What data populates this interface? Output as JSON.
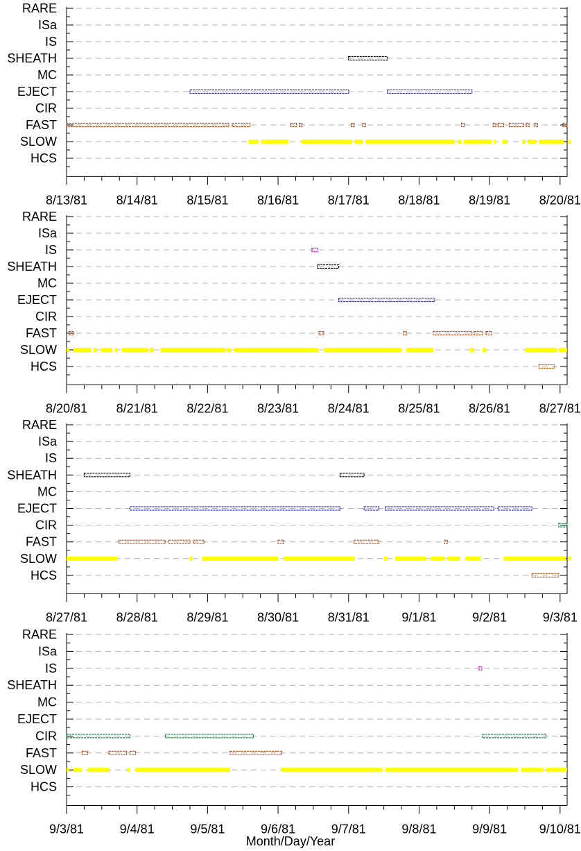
{
  "chart_data": {
    "type": "scatter",
    "xlabel": "Month/Day/Year",
    "categories": [
      "RARE",
      "ISa",
      "IS",
      "SHEATH",
      "MC",
      "EJECT",
      "CIR",
      "FAST",
      "SLOW",
      "HCS"
    ],
    "colors": {
      "SHEATH": "#000000",
      "EJECT": "#3333bb",
      "FAST": "#b05020",
      "SLOW": "#ffff00",
      "IS": "#cc22cc",
      "CIR": "#118844",
      "HCS": "#c06010"
    },
    "panels": [
      {
        "x_ticks": [
          "8/13/81",
          "8/14/81",
          "8/15/81",
          "8/16/81",
          "8/17/81",
          "8/18/81",
          "8/19/81",
          "8/20/81"
        ],
        "x_range_days": [
          0,
          7
        ],
        "intervals": [
          {
            "category": "SHEATH",
            "start": 4.0,
            "end": 4.55
          },
          {
            "category": "EJECT",
            "start": 1.75,
            "end": 4.0
          },
          {
            "category": "EJECT",
            "start": 4.55,
            "end": 5.75
          },
          {
            "category": "FAST",
            "start": 0.0,
            "end": 2.3
          },
          {
            "category": "FAST",
            "start": 2.35,
            "end": 2.6
          },
          {
            "category": "FAST",
            "start": 3.18,
            "end": 3.26
          },
          {
            "category": "FAST",
            "start": 3.3,
            "end": 3.34
          },
          {
            "category": "FAST",
            "start": 4.04,
            "end": 4.08
          },
          {
            "category": "FAST",
            "start": 4.2,
            "end": 4.24
          },
          {
            "category": "FAST",
            "start": 5.6,
            "end": 5.64
          },
          {
            "category": "FAST",
            "start": 6.05,
            "end": 6.09
          },
          {
            "category": "FAST",
            "start": 6.12,
            "end": 6.2
          },
          {
            "category": "FAST",
            "start": 6.28,
            "end": 6.48
          },
          {
            "category": "FAST",
            "start": 6.52,
            "end": 6.56
          },
          {
            "category": "FAST",
            "start": 6.64,
            "end": 6.68
          },
          {
            "category": "FAST",
            "start": 7.04,
            "end": 7.12
          },
          {
            "category": "SLOW",
            "start": 2.58,
            "end": 2.72
          },
          {
            "category": "SLOW",
            "start": 2.76,
            "end": 3.15
          },
          {
            "category": "SLOW",
            "start": 3.33,
            "end": 4.05
          },
          {
            "category": "SLOW",
            "start": 4.08,
            "end": 4.2
          },
          {
            "category": "SLOW",
            "start": 4.24,
            "end": 5.5
          },
          {
            "category": "SLOW",
            "start": 5.55,
            "end": 5.6
          },
          {
            "category": "SLOW",
            "start": 5.63,
            "end": 6.03
          },
          {
            "category": "SLOW",
            "start": 6.06,
            "end": 6.08
          },
          {
            "category": "SLOW",
            "start": 6.18,
            "end": 6.25
          },
          {
            "category": "SLOW",
            "start": 6.46,
            "end": 6.5
          },
          {
            "category": "SLOW",
            "start": 6.54,
            "end": 6.66
          },
          {
            "category": "SLOW",
            "start": 6.7,
            "end": 7.05
          },
          {
            "category": "SLOW",
            "start": 7.12,
            "end": 7.16
          }
        ]
      },
      {
        "x_ticks": [
          "8/20/81",
          "8/21/81",
          "8/22/81",
          "8/23/81",
          "8/24/81",
          "8/25/81",
          "8/26/81",
          "8/27/81"
        ],
        "x_range_days": [
          0,
          7
        ],
        "intervals": [
          {
            "category": "IS",
            "start": 3.48,
            "end": 3.56
          },
          {
            "category": "SHEATH",
            "start": 3.56,
            "end": 3.86
          },
          {
            "category": "EJECT",
            "start": 3.86,
            "end": 5.22
          },
          {
            "category": "FAST",
            "start": 0.03,
            "end": 0.1
          },
          {
            "category": "FAST",
            "start": 3.58,
            "end": 3.65
          },
          {
            "category": "FAST",
            "start": 4.78,
            "end": 4.82
          },
          {
            "category": "FAST",
            "start": 5.2,
            "end": 5.75
          },
          {
            "category": "FAST",
            "start": 5.78,
            "end": 5.9
          },
          {
            "category": "FAST",
            "start": 5.95,
            "end": 6.03
          },
          {
            "category": "HCS",
            "start": 6.7,
            "end": 6.92
          },
          {
            "category": "SLOW",
            "start": 0.0,
            "end": 0.04
          },
          {
            "category": "SLOW",
            "start": 0.1,
            "end": 0.35
          },
          {
            "category": "SLOW",
            "start": 0.38,
            "end": 0.43
          },
          {
            "category": "SLOW",
            "start": 0.48,
            "end": 0.65
          },
          {
            "category": "SLOW",
            "start": 0.68,
            "end": 0.72
          },
          {
            "category": "SLOW",
            "start": 0.78,
            "end": 1.15
          },
          {
            "category": "SLOW",
            "start": 1.18,
            "end": 1.23
          },
          {
            "category": "SLOW",
            "start": 1.33,
            "end": 2.25
          },
          {
            "category": "SLOW",
            "start": 2.28,
            "end": 2.33
          },
          {
            "category": "SLOW",
            "start": 2.38,
            "end": 3.57
          },
          {
            "category": "SLOW",
            "start": 3.65,
            "end": 4.75
          },
          {
            "category": "SLOW",
            "start": 4.82,
            "end": 5.2
          },
          {
            "category": "SLOW",
            "start": 5.72,
            "end": 5.78
          },
          {
            "category": "SLOW",
            "start": 5.9,
            "end": 5.95
          },
          {
            "category": "SLOW",
            "start": 6.5,
            "end": 6.95
          },
          {
            "category": "SLOW",
            "start": 6.98,
            "end": 7.16
          }
        ]
      },
      {
        "x_ticks": [
          "8/27/81",
          "8/28/81",
          "8/29/81",
          "8/30/81",
          "8/31/81",
          "9/1/81",
          "9/2/81",
          "9/3/81"
        ],
        "x_range_days": [
          0,
          7
        ],
        "intervals": [
          {
            "category": "SHEATH",
            "start": 0.25,
            "end": 0.9
          },
          {
            "category": "SHEATH",
            "start": 3.88,
            "end": 4.22
          },
          {
            "category": "EJECT",
            "start": 0.9,
            "end": 3.88
          },
          {
            "category": "EJECT",
            "start": 4.22,
            "end": 4.43
          },
          {
            "category": "EJECT",
            "start": 4.52,
            "end": 6.06
          },
          {
            "category": "EJECT",
            "start": 6.12,
            "end": 6.6
          },
          {
            "category": "CIR",
            "start": 6.98,
            "end": 7.16
          },
          {
            "category": "FAST",
            "start": 0.74,
            "end": 1.4
          },
          {
            "category": "FAST",
            "start": 1.45,
            "end": 1.75
          },
          {
            "category": "FAST",
            "start": 1.8,
            "end": 1.95
          },
          {
            "category": "FAST",
            "start": 3.0,
            "end": 3.08
          },
          {
            "category": "FAST",
            "start": 4.08,
            "end": 4.43
          },
          {
            "category": "FAST",
            "start": 5.36,
            "end": 5.4
          },
          {
            "category": "HCS",
            "start": 6.6,
            "end": 6.98
          },
          {
            "category": "SLOW",
            "start": 0.0,
            "end": 0.72
          },
          {
            "category": "SLOW",
            "start": 1.74,
            "end": 1.78
          },
          {
            "category": "SLOW",
            "start": 1.92,
            "end": 3.0
          },
          {
            "category": "SLOW",
            "start": 3.08,
            "end": 4.08
          },
          {
            "category": "SLOW",
            "start": 4.5,
            "end": 4.55
          },
          {
            "category": "SLOW",
            "start": 4.66,
            "end": 5.1
          },
          {
            "category": "SLOW",
            "start": 5.16,
            "end": 5.36
          },
          {
            "category": "SLOW",
            "start": 5.4,
            "end": 5.58
          },
          {
            "category": "SLOW",
            "start": 5.66,
            "end": 5.88
          },
          {
            "category": "SLOW",
            "start": 6.2,
            "end": 7.08
          },
          {
            "category": "SLOW",
            "start": 7.12,
            "end": 7.16
          }
        ]
      },
      {
        "x_ticks": [
          "9/3/81",
          "9/4/81",
          "9/5/81",
          "9/6/81",
          "9/7/81",
          "9/8/81",
          "9/9/81",
          "9/10/81"
        ],
        "x_range_days": [
          0,
          7
        ],
        "intervals": [
          {
            "category": "IS",
            "start": 5.85,
            "end": 5.89
          },
          {
            "category": "CIR",
            "start": 0.0,
            "end": 0.9
          },
          {
            "category": "CIR",
            "start": 1.4,
            "end": 2.65
          },
          {
            "category": "CIR",
            "start": 5.9,
            "end": 6.8
          },
          {
            "category": "FAST",
            "start": 0.22,
            "end": 0.3
          },
          {
            "category": "FAST",
            "start": 0.6,
            "end": 0.85
          },
          {
            "category": "FAST",
            "start": 0.9,
            "end": 0.98
          },
          {
            "category": "FAST",
            "start": 2.32,
            "end": 3.05
          },
          {
            "category": "SLOW",
            "start": 0.0,
            "end": 0.04
          },
          {
            "category": "SLOW",
            "start": 0.1,
            "end": 0.22
          },
          {
            "category": "SLOW",
            "start": 0.3,
            "end": 0.6
          },
          {
            "category": "SLOW",
            "start": 0.86,
            "end": 0.9
          },
          {
            "category": "SLOW",
            "start": 0.98,
            "end": 2.32
          },
          {
            "category": "SLOW",
            "start": 3.05,
            "end": 4.48
          },
          {
            "category": "SLOW",
            "start": 4.52,
            "end": 6.4
          },
          {
            "category": "SLOW",
            "start": 6.45,
            "end": 6.76
          },
          {
            "category": "SLOW",
            "start": 6.8,
            "end": 7.16
          }
        ]
      }
    ]
  }
}
